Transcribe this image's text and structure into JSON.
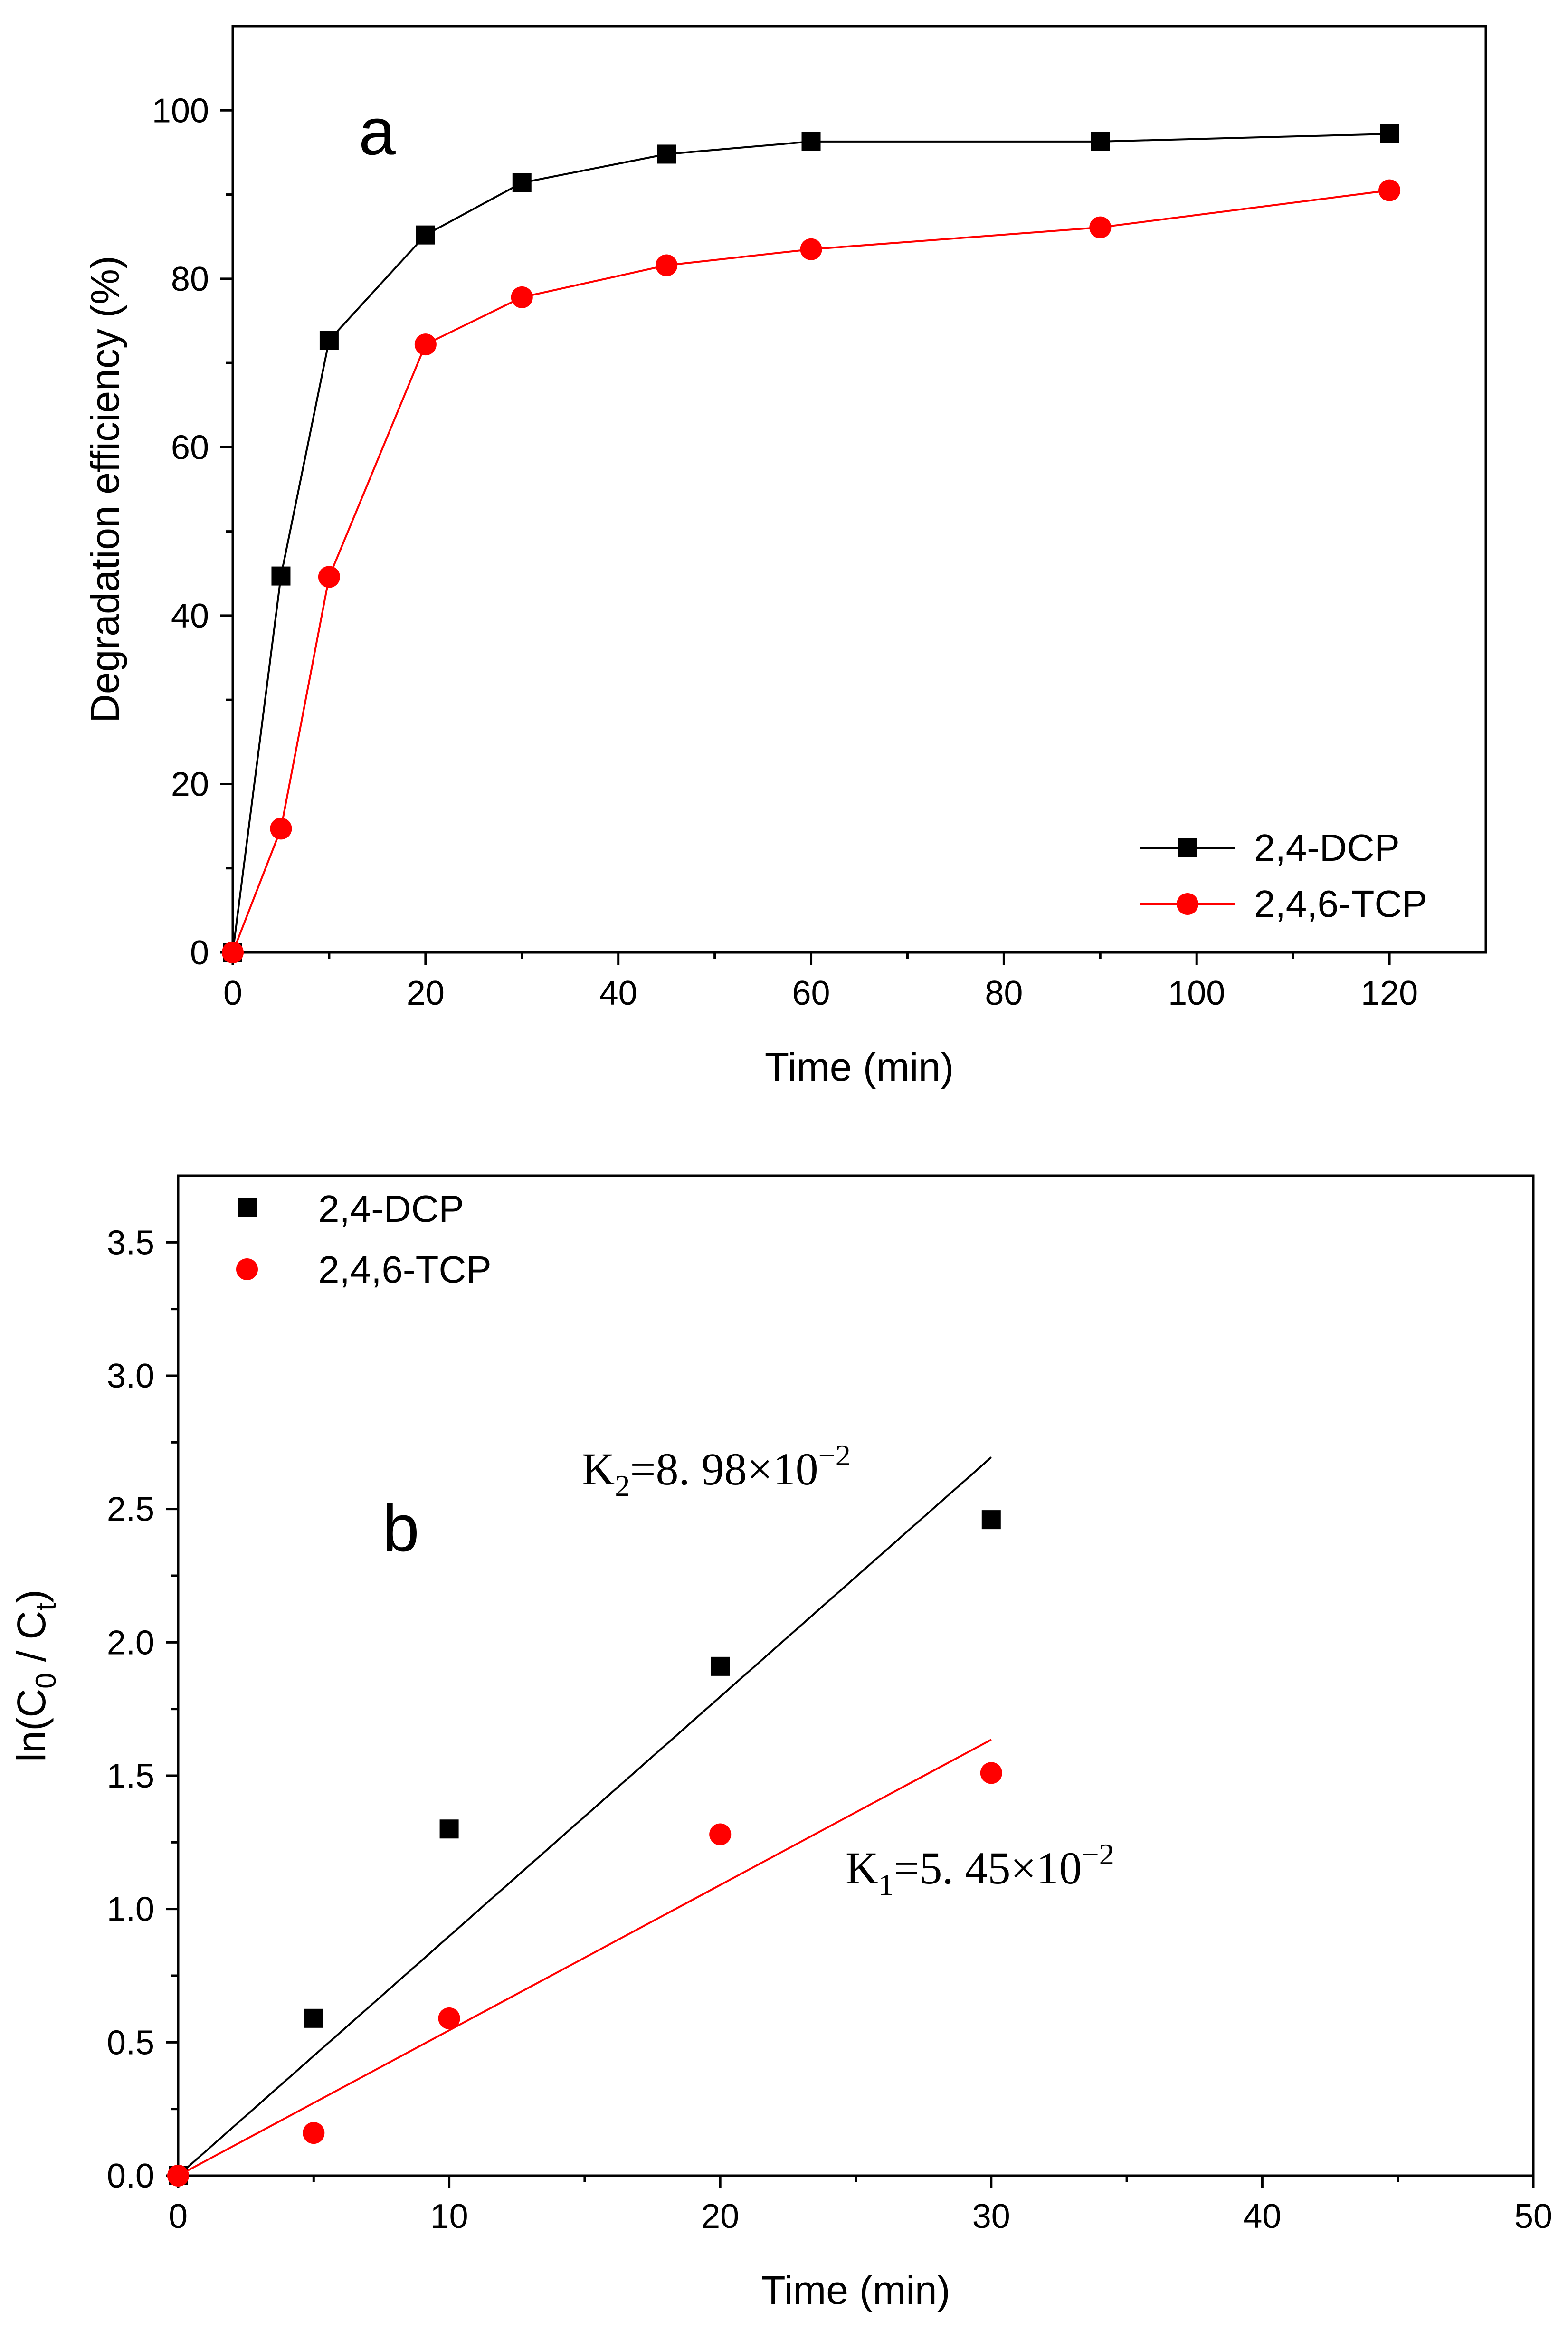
{
  "chart_data": [
    {
      "type": "line",
      "panel_label": "a",
      "xlabel": "Time (min)",
      "ylabel": "Degradation efficiency (%)",
      "xlim": [
        0,
        130
      ],
      "ylim": [
        0,
        110
      ],
      "xticks": [
        0,
        20,
        40,
        60,
        80,
        100,
        120
      ],
      "yticks": [
        0,
        20,
        40,
        60,
        80,
        100
      ],
      "legend_position": "bottom-right",
      "series": [
        {
          "name": "2,4-DCP",
          "color": "#000000",
          "marker": "square",
          "x": [
            0,
            5,
            10,
            20,
            30,
            45,
            60,
            90,
            120
          ],
          "y": [
            0,
            44.7,
            72.7,
            85.2,
            91.4,
            94.8,
            96.3,
            96.3,
            97.2
          ]
        },
        {
          "name": "2,4,6-TCP",
          "color": "#ff0000",
          "marker": "circle",
          "x": [
            0,
            5,
            10,
            20,
            30,
            45,
            60,
            90,
            120
          ],
          "y": [
            0,
            14.7,
            44.6,
            72.2,
            77.8,
            81.6,
            83.5,
            86.1,
            90.5
          ]
        }
      ]
    },
    {
      "type": "scatter",
      "panel_label": "b",
      "xlabel": "Time (min)",
      "ylabel": "ln(C0 / Ct)",
      "ylabel_parts": {
        "pre": "ln(C",
        "sub1": "0",
        "mid": " / C",
        "sub2": "t",
        "post": ")"
      },
      "xlim": [
        0,
        50
      ],
      "ylim": [
        0,
        3.75
      ],
      "xticks": [
        0,
        10,
        20,
        30,
        40,
        50
      ],
      "yticks": [
        0.0,
        0.5,
        1.0,
        1.5,
        2.0,
        2.5,
        3.0,
        3.5
      ],
      "ytick_labels": [
        "0.0",
        "0.5",
        "1.0",
        "1.5",
        "2.0",
        "2.5",
        "3.0",
        "3.5"
      ],
      "legend_position": "top-left",
      "series": [
        {
          "name": "2,4-DCP",
          "color": "#000000",
          "marker": "square",
          "x": [
            0,
            5,
            10,
            20,
            30
          ],
          "y": [
            0,
            0.59,
            1.3,
            1.91,
            2.46
          ],
          "fit": {
            "slope": 0.0898,
            "x_range": [
              0,
              30
            ]
          },
          "annotation": {
            "k": "K",
            "sub": "2",
            "eq": "=8. 98×10",
            "sup": "−2"
          }
        },
        {
          "name": "2,4,6-TCP",
          "color": "#ff0000",
          "marker": "circle",
          "x": [
            0,
            5,
            10,
            20,
            30
          ],
          "y": [
            0,
            0.16,
            0.59,
            1.28,
            1.51
          ],
          "fit": {
            "slope": 0.0545,
            "x_range": [
              0,
              30
            ]
          },
          "annotation": {
            "k": "K",
            "sub": "1",
            "eq": "=5. 45×10",
            "sup": "−2"
          }
        }
      ]
    }
  ]
}
